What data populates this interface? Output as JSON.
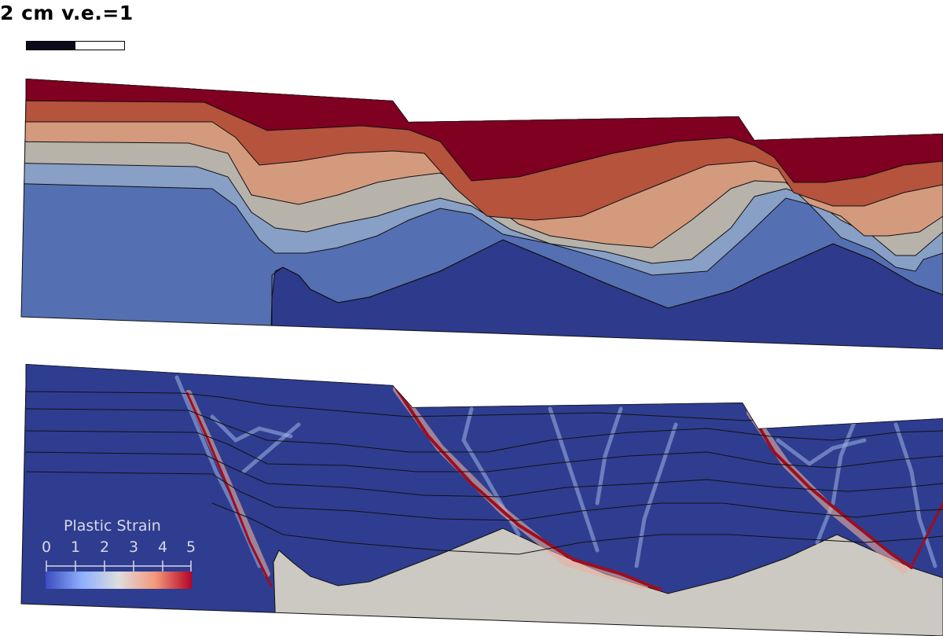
{
  "header": {
    "scale_title": "2 cm v.e.=1"
  },
  "colorbar": {
    "label": "Plastic Strain",
    "ticks": [
      "0",
      "1",
      "2",
      "3",
      "4",
      "5"
    ],
    "colors": [
      "#3b4cc0",
      "#8db0fe",
      "#dddddd",
      "#f4987a",
      "#b40426"
    ]
  },
  "layer_colors": {
    "top_layer": "#7f0021",
    "layer_2": "#b5533c",
    "layer_3": "#d49a7e",
    "layer_4": "#b7b2aa",
    "layer_5": "#889fc6",
    "basement": "#5470b2",
    "deep_basement": "#2e3a8c"
  },
  "strain_panel_colors": {
    "background": "#2e3d8f",
    "substrate": "#ccc9c2",
    "high_strain": "#a00d1e"
  }
}
